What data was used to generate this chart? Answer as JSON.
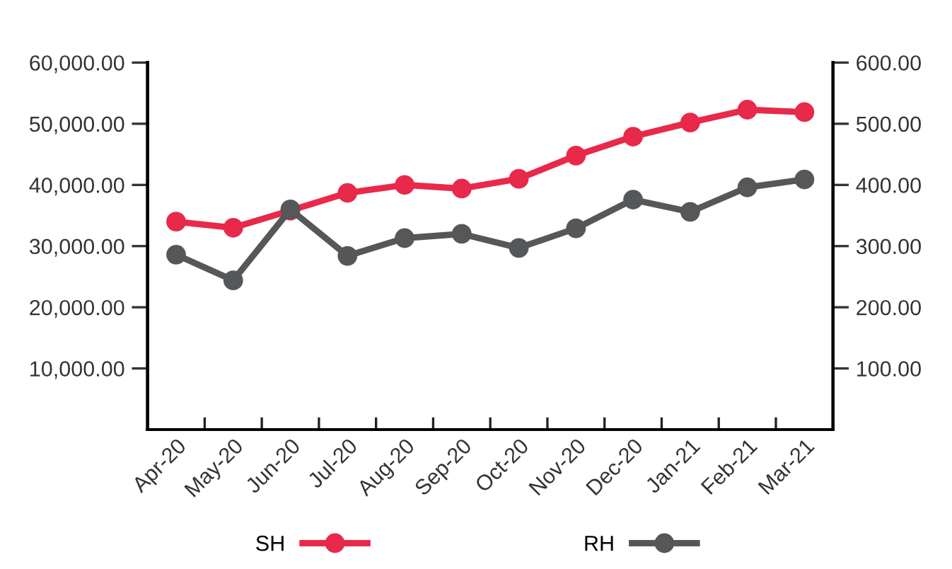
{
  "chart_data": {
    "type": "line",
    "categories": [
      "Apr-20",
      "May-20",
      "Jun-20",
      "Jul-20",
      "Aug-20",
      "Sep-20",
      "Oct-20",
      "Nov-20",
      "Dec-20",
      "Jan-21",
      "Feb-21",
      "Mar-21"
    ],
    "series": [
      {
        "name": "SH",
        "color": "#e8294a",
        "values": [
          34000,
          33000,
          35800,
          38700,
          40000,
          39400,
          41000,
          44800,
          47900,
          50200,
          52300,
          51900
        ]
      },
      {
        "name": "RH",
        "color": "#555759",
        "axis": "y2",
        "values": [
          286,
          244,
          360,
          284,
          313,
          320,
          297,
          329,
          376,
          356,
          396,
          409
        ]
      }
    ],
    "ylim": [
      0,
      60000
    ],
    "yticks": [
      {
        "value": 10000,
        "label": "10,000.00"
      },
      {
        "value": 20000,
        "label": "20,000.00"
      },
      {
        "value": 30000,
        "label": "30,000.00"
      },
      {
        "value": 40000,
        "label": "40,000.00"
      },
      {
        "value": 50000,
        "label": "50,000.00"
      },
      {
        "value": 60000,
        "label": "60,000.00"
      }
    ],
    "y2lim": [
      0,
      600
    ],
    "y2ticks": [
      {
        "value": 100,
        "label": "100.00"
      },
      {
        "value": 200,
        "label": "200.00"
      },
      {
        "value": 300,
        "label": "300.00"
      },
      {
        "value": 400,
        "label": "400.00"
      },
      {
        "value": 500,
        "label": "500.00"
      },
      {
        "value": 600,
        "label": "600.00"
      }
    ],
    "marker": "circle",
    "line_style": "solid",
    "grid": false,
    "legend": "bottom"
  }
}
